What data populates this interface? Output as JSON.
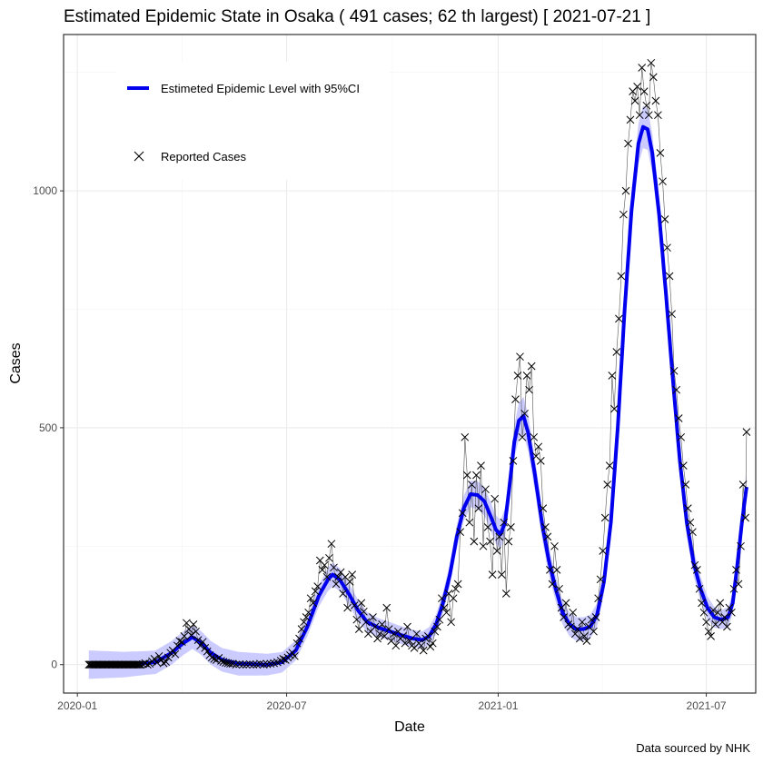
{
  "chart_data": {
    "type": "line",
    "title": "Estimated Epidemic State in Osaka  ( 491 cases; 62 th largest) [ 2021-07-21 ]",
    "xlabel": "Date",
    "ylabel": "Cases",
    "caption": "Data sourced by NHK",
    "x_ticks": [
      {
        "label": "2020-01",
        "day": 0
      },
      {
        "label": "2020-07",
        "day": 182
      },
      {
        "label": "2021-01",
        "day": 366
      },
      {
        "label": "2021-07",
        "day": 547
      }
    ],
    "y_ticks": [
      0,
      500,
      1000
    ],
    "xlim": [
      -12,
      590
    ],
    "ylim": [
      -60,
      1330
    ],
    "grid": true,
    "legend": {
      "position": "top-left",
      "entries": [
        {
          "label": "Estimeted Epidemic Level with 95%CI",
          "kind": "line",
          "color": "#0000ee"
        },
        {
          "label": "Reported Cases",
          "kind": "cross",
          "color": "#000000"
        }
      ]
    },
    "trend_knots": [
      [
        10,
        0
      ],
      [
        40,
        0
      ],
      [
        68,
        5
      ],
      [
        82,
        25
      ],
      [
        92,
        45
      ],
      [
        100,
        58
      ],
      [
        108,
        45
      ],
      [
        116,
        25
      ],
      [
        126,
        10
      ],
      [
        140,
        2
      ],
      [
        165,
        0
      ],
      [
        178,
        5
      ],
      [
        190,
        30
      ],
      [
        200,
        80
      ],
      [
        210,
        145
      ],
      [
        218,
        180
      ],
      [
        222,
        190
      ],
      [
        228,
        180
      ],
      [
        236,
        150
      ],
      [
        244,
        115
      ],
      [
        252,
        90
      ],
      [
        262,
        78
      ],
      [
        272,
        70
      ],
      [
        282,
        62
      ],
      [
        292,
        55
      ],
      [
        300,
        52
      ],
      [
        306,
        60
      ],
      [
        312,
        85
      ],
      [
        318,
        130
      ],
      [
        324,
        190
      ],
      [
        330,
        270
      ],
      [
        336,
        330
      ],
      [
        342,
        360
      ],
      [
        348,
        358
      ],
      [
        354,
        345
      ],
      [
        360,
        310
      ],
      [
        364,
        285
      ],
      [
        368,
        275
      ],
      [
        372,
        300
      ],
      [
        376,
        380
      ],
      [
        380,
        470
      ],
      [
        384,
        515
      ],
      [
        388,
        525
      ],
      [
        392,
        490
      ],
      [
        398,
        400
      ],
      [
        404,
        300
      ],
      [
        410,
        220
      ],
      [
        416,
        160
      ],
      [
        422,
        110
      ],
      [
        428,
        85
      ],
      [
        434,
        75
      ],
      [
        440,
        75
      ],
      [
        446,
        80
      ],
      [
        452,
        105
      ],
      [
        458,
        175
      ],
      [
        464,
        300
      ],
      [
        470,
        500
      ],
      [
        476,
        750
      ],
      [
        482,
        960
      ],
      [
        488,
        1100
      ],
      [
        492,
        1135
      ],
      [
        496,
        1130
      ],
      [
        500,
        1080
      ],
      [
        506,
        950
      ],
      [
        512,
        780
      ],
      [
        518,
        600
      ],
      [
        524,
        430
      ],
      [
        530,
        300
      ],
      [
        536,
        215
      ],
      [
        542,
        160
      ],
      [
        548,
        120
      ],
      [
        554,
        100
      ],
      [
        560,
        95
      ],
      [
        566,
        100
      ],
      [
        570,
        130
      ],
      [
        574,
        210
      ],
      [
        578,
        300
      ],
      [
        582,
        375
      ]
    ],
    "ci_halfwidth_knots": [
      [
        10,
        30
      ],
      [
        60,
        25
      ],
      [
        100,
        25
      ],
      [
        140,
        25
      ],
      [
        175,
        22
      ],
      [
        200,
        20
      ],
      [
        220,
        25
      ],
      [
        260,
        20
      ],
      [
        300,
        18
      ],
      [
        330,
        25
      ],
      [
        350,
        30
      ],
      [
        370,
        30
      ],
      [
        388,
        40
      ],
      [
        420,
        25
      ],
      [
        460,
        25
      ],
      [
        492,
        45
      ],
      [
        530,
        30
      ],
      [
        560,
        20
      ],
      [
        582,
        25
      ]
    ],
    "reported_cases": [
      [
        10,
        0
      ],
      [
        11,
        0
      ],
      [
        12,
        0
      ],
      [
        13,
        0
      ],
      [
        14,
        0
      ],
      [
        15,
        0
      ],
      [
        16,
        0
      ],
      [
        17,
        0
      ],
      [
        18,
        0
      ],
      [
        19,
        0
      ],
      [
        20,
        0
      ],
      [
        21,
        0
      ],
      [
        22,
        0
      ],
      [
        23,
        0
      ],
      [
        24,
        0
      ],
      [
        25,
        0
      ],
      [
        26,
        0
      ],
      [
        27,
        0
      ],
      [
        28,
        0
      ],
      [
        29,
        0
      ],
      [
        30,
        0
      ],
      [
        31,
        0
      ],
      [
        32,
        0
      ],
      [
        33,
        0
      ],
      [
        34,
        0
      ],
      [
        35,
        0
      ],
      [
        36,
        0
      ],
      [
        37,
        0
      ],
      [
        38,
        0
      ],
      [
        39,
        0
      ],
      [
        40,
        0
      ],
      [
        41,
        0
      ],
      [
        42,
        0
      ],
      [
        43,
        0
      ],
      [
        44,
        0
      ],
      [
        45,
        0
      ],
      [
        46,
        0
      ],
      [
        47,
        0
      ],
      [
        48,
        0
      ],
      [
        49,
        0
      ],
      [
        50,
        0
      ],
      [
        51,
        0
      ],
      [
        52,
        0
      ],
      [
        53,
        0
      ],
      [
        54,
        0
      ],
      [
        55,
        0
      ],
      [
        57,
        1
      ],
      [
        59,
        3
      ],
      [
        61,
        0
      ],
      [
        63,
        2
      ],
      [
        65,
        7
      ],
      [
        67,
        12
      ],
      [
        69,
        5
      ],
      [
        71,
        18
      ],
      [
        73,
        10
      ],
      [
        75,
        3
      ],
      [
        77,
        6
      ],
      [
        79,
        15
      ],
      [
        81,
        25
      ],
      [
        83,
        30
      ],
      [
        85,
        22
      ],
      [
        87,
        40
      ],
      [
        89,
        50
      ],
      [
        91,
        48
      ],
      [
        93,
        60
      ],
      [
        95,
        88
      ],
      [
        97,
        75
      ],
      [
        99,
        62
      ],
      [
        101,
        85
      ],
      [
        103,
        70
      ],
      [
        105,
        52
      ],
      [
        107,
        40
      ],
      [
        109,
        48
      ],
      [
        111,
        35
      ],
      [
        113,
        28
      ],
      [
        115,
        20
      ],
      [
        117,
        15
      ],
      [
        119,
        12
      ],
      [
        121,
        10
      ],
      [
        123,
        14
      ],
      [
        125,
        8
      ],
      [
        127,
        6
      ],
      [
        129,
        4
      ],
      [
        131,
        3
      ],
      [
        133,
        2
      ],
      [
        135,
        2
      ],
      [
        138,
        0
      ],
      [
        141,
        1
      ],
      [
        144,
        0
      ],
      [
        147,
        0
      ],
      [
        150,
        1
      ],
      [
        153,
        0
      ],
      [
        156,
        0
      ],
      [
        159,
        2
      ],
      [
        162,
        0
      ],
      [
        165,
        1
      ],
      [
        168,
        2
      ],
      [
        171,
        3
      ],
      [
        174,
        5
      ],
      [
        177,
        8
      ],
      [
        179,
        12
      ],
      [
        181,
        10
      ],
      [
        183,
        15
      ],
      [
        185,
        20
      ],
      [
        187,
        25
      ],
      [
        189,
        18
      ],
      [
        191,
        45
      ],
      [
        193,
        55
      ],
      [
        195,
        75
      ],
      [
        197,
        90
      ],
      [
        199,
        100
      ],
      [
        201,
        110
      ],
      [
        203,
        140
      ],
      [
        205,
        130
      ],
      [
        207,
        155
      ],
      [
        209,
        165
      ],
      [
        211,
        220
      ],
      [
        213,
        200
      ],
      [
        215,
        210
      ],
      [
        217,
        185
      ],
      [
        219,
        225
      ],
      [
        221,
        255
      ],
      [
        223,
        205
      ],
      [
        225,
        170
      ],
      [
        227,
        185
      ],
      [
        229,
        195
      ],
      [
        231,
        150
      ],
      [
        233,
        185
      ],
      [
        235,
        120
      ],
      [
        237,
        175
      ],
      [
        239,
        190
      ],
      [
        241,
        125
      ],
      [
        243,
        95
      ],
      [
        245,
        75
      ],
      [
        247,
        130
      ],
      [
        249,
        112
      ],
      [
        251,
        90
      ],
      [
        253,
        65
      ],
      [
        255,
        70
      ],
      [
        257,
        100
      ],
      [
        259,
        80
      ],
      [
        261,
        55
      ],
      [
        263,
        65
      ],
      [
        265,
        85
      ],
      [
        267,
        60
      ],
      [
        269,
        120
      ],
      [
        271,
        75
      ],
      [
        273,
        50
      ],
      [
        275,
        65
      ],
      [
        277,
        40
      ],
      [
        279,
        70
      ],
      [
        281,
        55
      ],
      [
        283,
        60
      ],
      [
        285,
        45
      ],
      [
        287,
        80
      ],
      [
        289,
        50
      ],
      [
        291,
        40
      ],
      [
        293,
        35
      ],
      [
        295,
        65
      ],
      [
        297,
        45
      ],
      [
        299,
        40
      ],
      [
        301,
        30
      ],
      [
        303,
        55
      ],
      [
        305,
        60
      ],
      [
        307,
        38
      ],
      [
        309,
        45
      ],
      [
        311,
        70
      ],
      [
        313,
        80
      ],
      [
        315,
        95
      ],
      [
        317,
        140
      ],
      [
        319,
        120
      ],
      [
        321,
        110
      ],
      [
        323,
        150
      ],
      [
        325,
        90
      ],
      [
        327,
        140
      ],
      [
        329,
        160
      ],
      [
        331,
        170
      ],
      [
        333,
        280
      ],
      [
        335,
        320
      ],
      [
        337,
        480
      ],
      [
        339,
        400
      ],
      [
        341,
        300
      ],
      [
        343,
        380
      ],
      [
        345,
        260
      ],
      [
        347,
        400
      ],
      [
        349,
        330
      ],
      [
        351,
        420
      ],
      [
        353,
        250
      ],
      [
        355,
        370
      ],
      [
        357,
        290
      ],
      [
        359,
        260
      ],
      [
        361,
        190
      ],
      [
        363,
        350
      ],
      [
        365,
        240
      ],
      [
        367,
        270
      ],
      [
        369,
        190
      ],
      [
        371,
        300
      ],
      [
        373,
        150
      ],
      [
        375,
        260
      ],
      [
        377,
        290
      ],
      [
        379,
        430
      ],
      [
        381,
        560
      ],
      [
        383,
        610
      ],
      [
        385,
        650
      ],
      [
        387,
        480
      ],
      [
        389,
        530
      ],
      [
        391,
        610
      ],
      [
        393,
        580
      ],
      [
        395,
        630
      ],
      [
        397,
        480
      ],
      [
        399,
        440
      ],
      [
        401,
        460
      ],
      [
        403,
        430
      ],
      [
        405,
        330
      ],
      [
        407,
        290
      ],
      [
        409,
        270
      ],
      [
        411,
        200
      ],
      [
        413,
        170
      ],
      [
        415,
        250
      ],
      [
        417,
        200
      ],
      [
        419,
        160
      ],
      [
        421,
        120
      ],
      [
        423,
        100
      ],
      [
        425,
        130
      ],
      [
        427,
        85
      ],
      [
        429,
        80
      ],
      [
        431,
        110
      ],
      [
        433,
        65
      ],
      [
        435,
        75
      ],
      [
        437,
        55
      ],
      [
        439,
        90
      ],
      [
        441,
        60
      ],
      [
        443,
        50
      ],
      [
        445,
        80
      ],
      [
        447,
        95
      ],
      [
        449,
        70
      ],
      [
        451,
        100
      ],
      [
        453,
        140
      ],
      [
        455,
        180
      ],
      [
        457,
        240
      ],
      [
        459,
        310
      ],
      [
        461,
        380
      ],
      [
        463,
        420
      ],
      [
        465,
        610
      ],
      [
        467,
        540
      ],
      [
        469,
        660
      ],
      [
        471,
        730
      ],
      [
        473,
        820
      ],
      [
        475,
        950
      ],
      [
        477,
        1000
      ],
      [
        479,
        1100
      ],
      [
        481,
        1150
      ],
      [
        483,
        1210
      ],
      [
        485,
        1190
      ],
      [
        487,
        1220
      ],
      [
        489,
        1160
      ],
      [
        491,
        1260
      ],
      [
        493,
        1210
      ],
      [
        495,
        1180
      ],
      [
        497,
        1160
      ],
      [
        499,
        1270
      ],
      [
        501,
        1240
      ],
      [
        503,
        1190
      ],
      [
        505,
        1160
      ],
      [
        507,
        1080
      ],
      [
        509,
        1020
      ],
      [
        511,
        940
      ],
      [
        513,
        880
      ],
      [
        515,
        820
      ],
      [
        517,
        740
      ],
      [
        519,
        620
      ],
      [
        521,
        580
      ],
      [
        523,
        520
      ],
      [
        525,
        480
      ],
      [
        527,
        420
      ],
      [
        529,
        380
      ],
      [
        531,
        330
      ],
      [
        533,
        300
      ],
      [
        535,
        280
      ],
      [
        537,
        210
      ],
      [
        539,
        200
      ],
      [
        541,
        160
      ],
      [
        543,
        130
      ],
      [
        545,
        110
      ],
      [
        547,
        90
      ],
      [
        549,
        70
      ],
      [
        551,
        60
      ],
      [
        553,
        115
      ],
      [
        555,
        85
      ],
      [
        557,
        110
      ],
      [
        559,
        130
      ],
      [
        561,
        90
      ],
      [
        563,
        100
      ],
      [
        565,
        80
      ],
      [
        567,
        120
      ],
      [
        569,
        110
      ],
      [
        571,
        160
      ],
      [
        573,
        200
      ],
      [
        575,
        170
      ],
      [
        577,
        250
      ],
      [
        579,
        380
      ],
      [
        581,
        310
      ],
      [
        582,
        491
      ]
    ]
  }
}
